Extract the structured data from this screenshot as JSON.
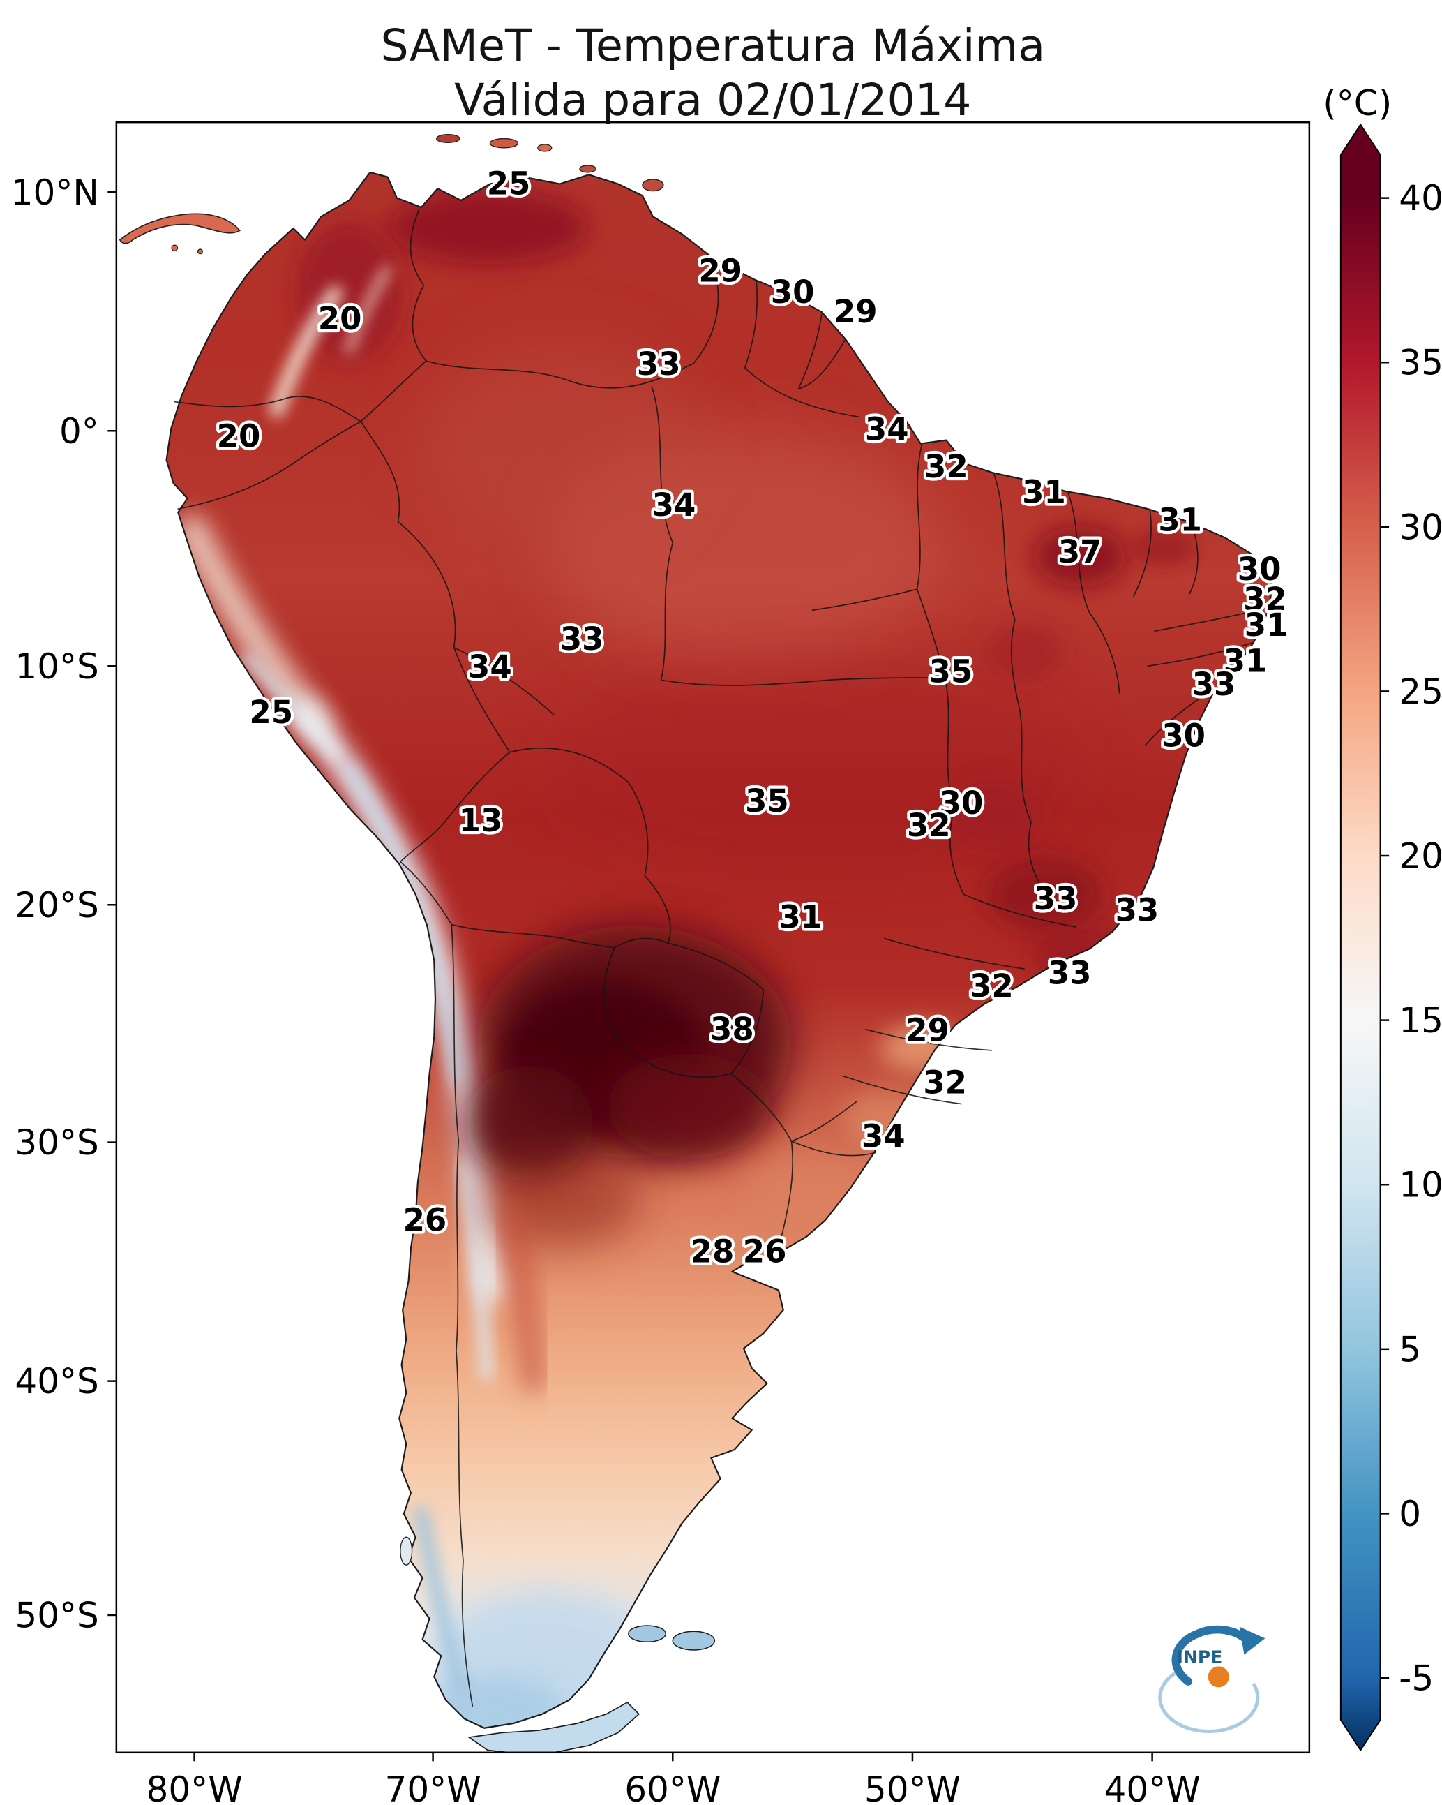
{
  "title": {
    "line1": "SAMeT - Temperatura Máxima",
    "line2": "Válida para 02/01/2014"
  },
  "colorbar": {
    "unit_label": "(°C)",
    "stops": [
      {
        "value": 40,
        "label": "40",
        "color": "#67001f"
      },
      {
        "value": 35,
        "label": "35",
        "color": "#b2182b"
      },
      {
        "value": 30,
        "label": "30",
        "color": "#d6604d"
      },
      {
        "value": 25,
        "label": "25",
        "color": "#f4a582"
      },
      {
        "value": 20,
        "label": "20",
        "color": "#fddbc7"
      },
      {
        "value": 15,
        "label": "15",
        "color": "#f7f7f7"
      },
      {
        "value": 10,
        "label": "10",
        "color": "#d1e5f0"
      },
      {
        "value": 5,
        "label": "5",
        "color": "#92c5de"
      },
      {
        "value": 0,
        "label": "0",
        "color": "#4393c3"
      },
      {
        "value": -5,
        "label": "-5",
        "color": "#2166ac"
      }
    ],
    "over_color": "#67001f",
    "under_color": "#053061"
  },
  "axes": {
    "x_ticks": [
      "80°W",
      "70°W",
      "60°W",
      "50°W",
      "40°W"
    ],
    "y_ticks": [
      "10°N",
      "0°",
      "10°S",
      "20°S",
      "30°S",
      "40°S",
      "50°S"
    ]
  },
  "logo": {
    "label": "INPE"
  },
  "chart_data": {
    "type": "heatmap",
    "title": "SAMeT - Temperatura Máxima",
    "subtitle": "Válida para 02/01/2014",
    "unit": "°C",
    "colorbar_range": [
      -5,
      40
    ],
    "x_axis_labels": [
      "80°W",
      "70°W",
      "60°W",
      "50°W",
      "40°W"
    ],
    "y_axis_labels": [
      "10°N",
      "0°",
      "10°S",
      "20°S",
      "30°S",
      "40°S",
      "50°S"
    ],
    "region_max_temps": [
      {
        "label": "25",
        "x": 437,
        "y": 158
      },
      {
        "label": "20",
        "x": 292,
        "y": 274
      },
      {
        "label": "29",
        "x": 619,
        "y": 233
      },
      {
        "label": "30",
        "x": 681,
        "y": 251
      },
      {
        "label": "29",
        "x": 735,
        "y": 268
      },
      {
        "label": "33",
        "x": 566,
        "y": 313
      },
      {
        "label": "20",
        "x": 205,
        "y": 375
      },
      {
        "label": "34",
        "x": 762,
        "y": 369
      },
      {
        "label": "32",
        "x": 813,
        "y": 401
      },
      {
        "label": "34",
        "x": 579,
        "y": 434
      },
      {
        "label": "31",
        "x": 897,
        "y": 423
      },
      {
        "label": "37",
        "x": 928,
        "y": 474
      },
      {
        "label": "31",
        "x": 1014,
        "y": 447
      },
      {
        "label": "30",
        "x": 1082,
        "y": 489
      },
      {
        "label": "32",
        "x": 1087,
        "y": 515
      },
      {
        "label": "31",
        "x": 1088,
        "y": 537
      },
      {
        "label": "33",
        "x": 500,
        "y": 549
      },
      {
        "label": "34",
        "x": 421,
        "y": 573
      },
      {
        "label": "35",
        "x": 817,
        "y": 577
      },
      {
        "label": "31",
        "x": 1070,
        "y": 568
      },
      {
        "label": "33",
        "x": 1043,
        "y": 588
      },
      {
        "label": "25",
        "x": 233,
        "y": 612
      },
      {
        "label": "30",
        "x": 1017,
        "y": 632
      },
      {
        "label": "13",
        "x": 413,
        "y": 705
      },
      {
        "label": "35",
        "x": 659,
        "y": 688
      },
      {
        "label": "30",
        "x": 826,
        "y": 690
      },
      {
        "label": "32",
        "x": 798,
        "y": 709
      },
      {
        "label": "31",
        "x": 688,
        "y": 788
      },
      {
        "label": "33",
        "x": 907,
        "y": 772
      },
      {
        "label": "33",
        "x": 977,
        "y": 782
      },
      {
        "label": "32",
        "x": 852,
        "y": 847
      },
      {
        "label": "33",
        "x": 919,
        "y": 836
      },
      {
        "label": "38",
        "x": 629,
        "y": 884
      },
      {
        "label": "29",
        "x": 797,
        "y": 885
      },
      {
        "label": "32",
        "x": 812,
        "y": 930
      },
      {
        "label": "34",
        "x": 759,
        "y": 976
      },
      {
        "label": "26",
        "x": 365,
        "y": 1048
      },
      {
        "label": "28",
        "x": 612,
        "y": 1075
      },
      {
        "label": "26",
        "x": 657,
        "y": 1075
      }
    ]
  }
}
